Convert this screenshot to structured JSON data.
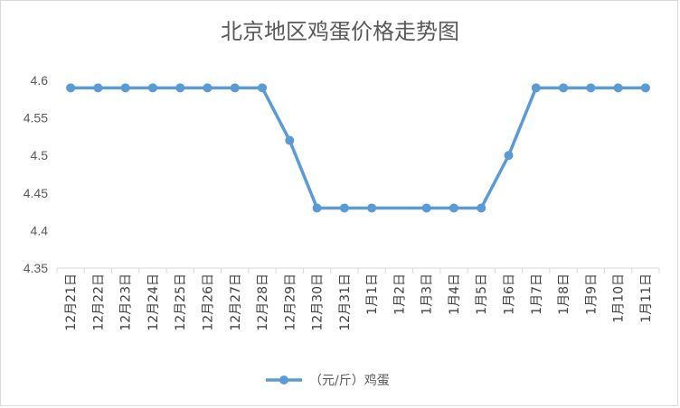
{
  "chart_data": {
    "type": "line",
    "title": "北京地区鸡蛋价格走势图",
    "xlabel": "",
    "ylabel": "",
    "categories": [
      "12月21日",
      "12月22日",
      "12月23日",
      "12月24日",
      "12月25日",
      "12月26日",
      "12月27日",
      "12月28日",
      "12月29日",
      "12月30日",
      "12月31日",
      "1月1日",
      "1月2日",
      "1月3日",
      "1月4日",
      "1月5日",
      "1月6日",
      "1月7日",
      "1月8日",
      "1月9日",
      "1月10日",
      "1月11日"
    ],
    "series": [
      {
        "name": "（元/斤）鸡蛋",
        "values": [
          4.59,
          4.59,
          4.59,
          4.59,
          4.59,
          4.59,
          4.59,
          4.59,
          4.52,
          4.43,
          4.43,
          4.43,
          null,
          4.43,
          4.43,
          4.43,
          4.5,
          4.59,
          4.59,
          4.59,
          4.59,
          4.59
        ]
      }
    ],
    "ylim": [
      4.35,
      4.6
    ],
    "yticks": [
      "4.35",
      "4.4",
      "4.45",
      "4.5",
      "4.55",
      "4.6"
    ],
    "grid": false,
    "legend_position": "bottom",
    "colors": {
      "series": "#5b9bd5",
      "axis": "#d9d9d9",
      "frame": "#d9d9d9"
    }
  }
}
